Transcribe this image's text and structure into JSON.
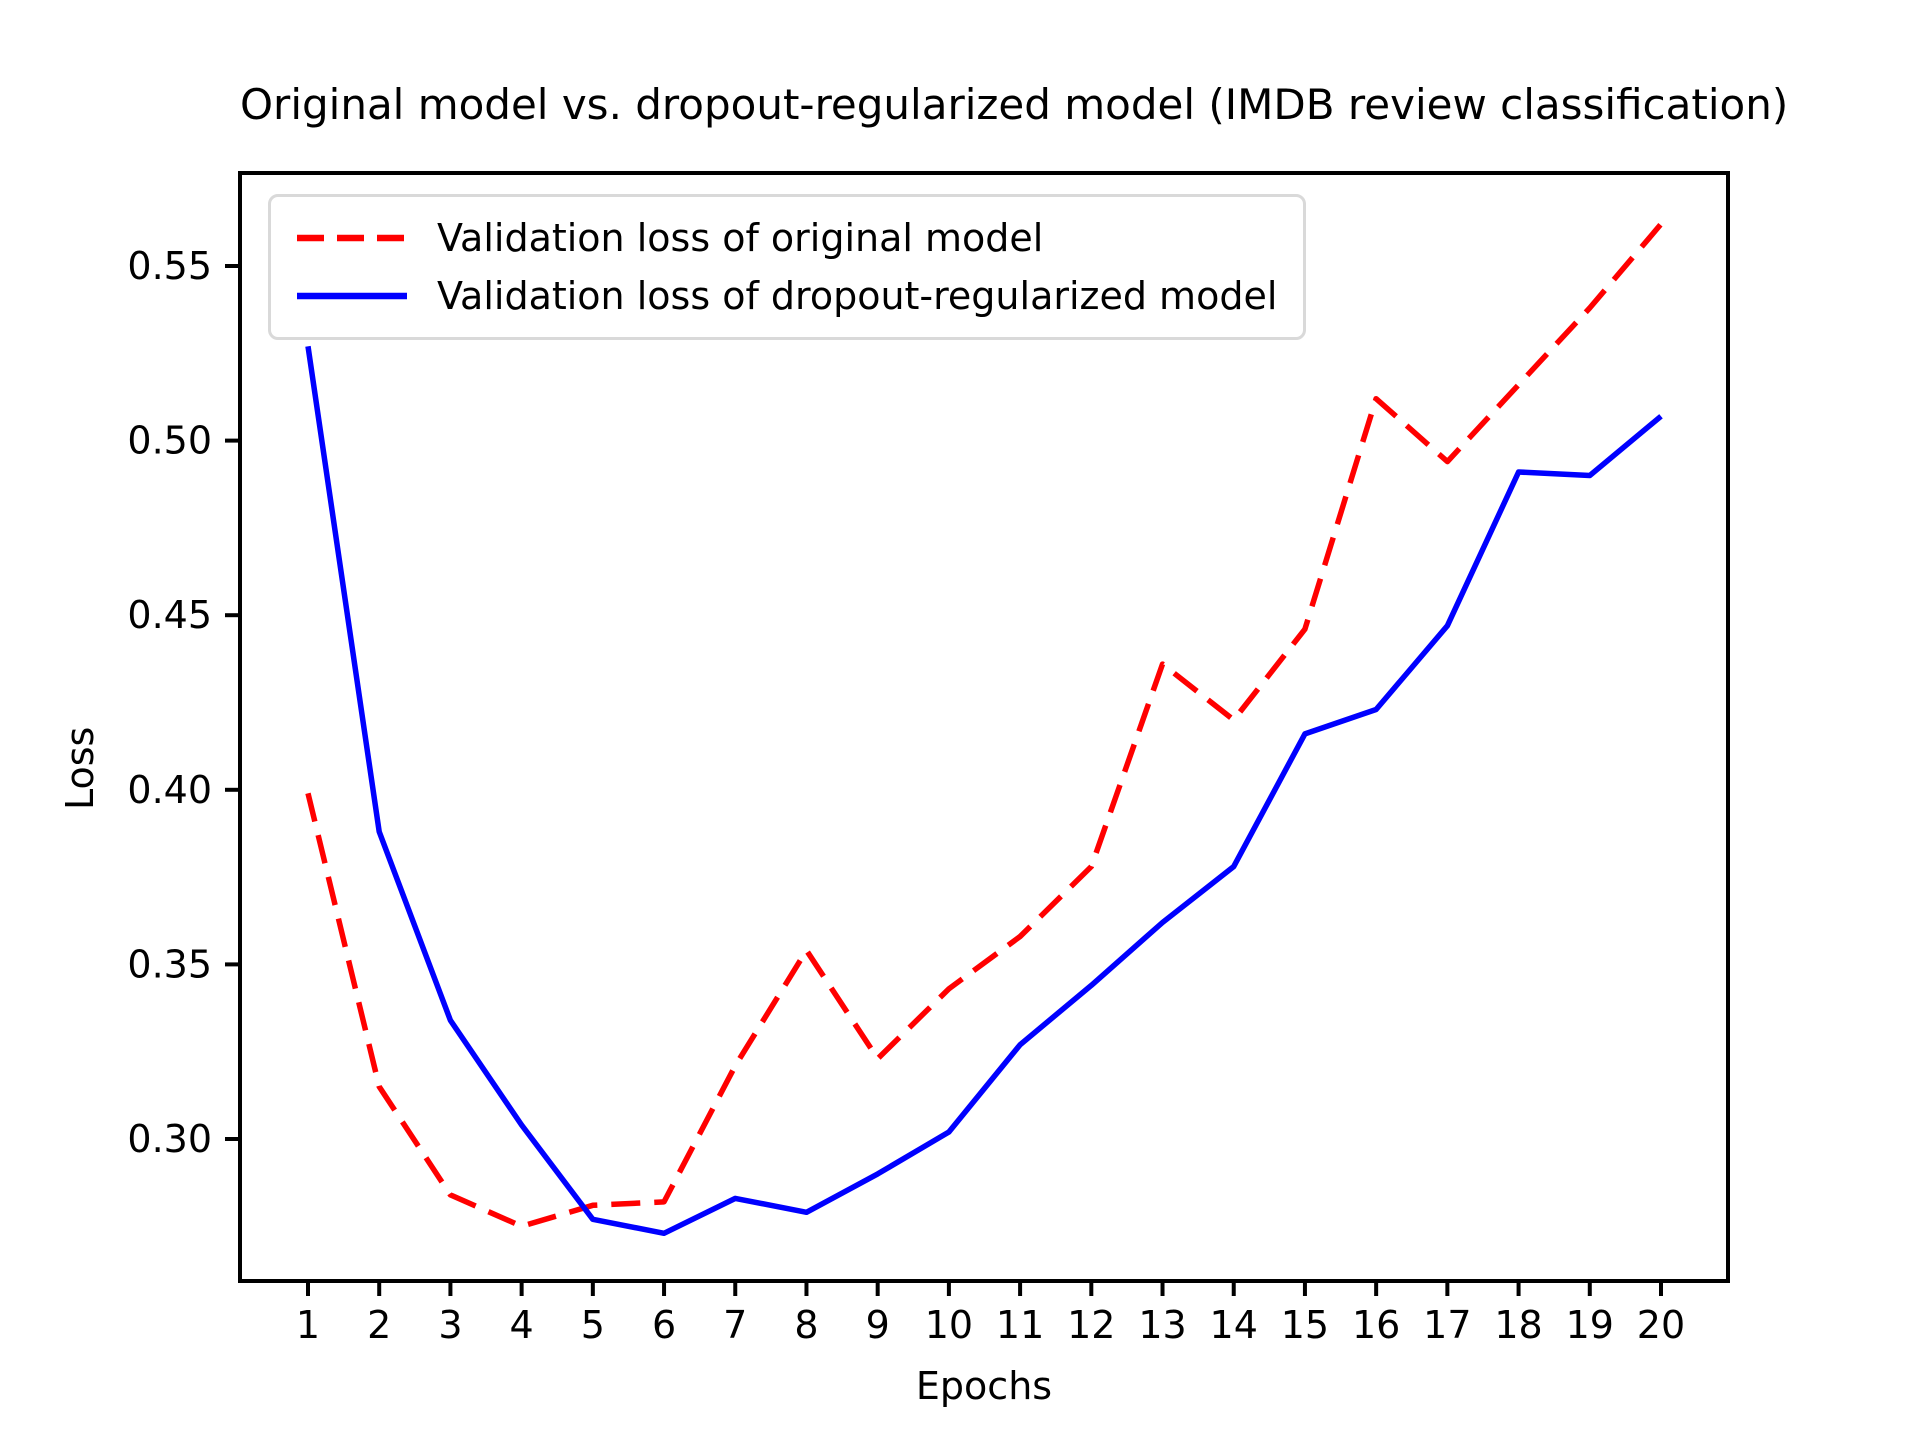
{
  "title": "Original model vs. dropout-regularized model (IMDB review classification)",
  "axes": {
    "xlabel": "Epochs",
    "ylabel": "Loss"
  },
  "legend": {
    "position": "upper left",
    "entries": [
      {
        "label": "Validation loss of original model",
        "color": "#ff0000",
        "line_style": "dashed"
      },
      {
        "label": "Validation loss of dropout-regularized model",
        "color": "#0000ff",
        "line_style": "solid"
      }
    ]
  },
  "chart_data": {
    "type": "line",
    "title": "Original model vs. dropout-regularized model (IMDB review classification)",
    "xlabel": "Epochs",
    "ylabel": "Loss",
    "x": [
      1,
      2,
      3,
      4,
      5,
      6,
      7,
      8,
      9,
      10,
      11,
      12,
      13,
      14,
      15,
      16,
      17,
      18,
      19,
      20
    ],
    "x_tick_labels": [
      "1",
      "2",
      "3",
      "4",
      "5",
      "6",
      "7",
      "8",
      "9",
      "10",
      "11",
      "12",
      "13",
      "14",
      "15",
      "16",
      "17",
      "18",
      "19",
      "20"
    ],
    "y_tick_labels": [
      "0.30",
      "0.35",
      "0.40",
      "0.45",
      "0.50",
      "0.55"
    ],
    "xlim": [
      0.05,
      20.95
    ],
    "ylim": [
      0.259,
      0.577
    ],
    "grid": false,
    "legend_position": "upper left",
    "series": [
      {
        "name": "Validation loss of original model",
        "color": "#ff0000",
        "line_style": "dashed",
        "values": [
          0.399,
          0.315,
          0.284,
          0.275,
          0.281,
          0.282,
          0.321,
          0.354,
          0.323,
          0.343,
          0.358,
          0.378,
          0.436,
          0.42,
          0.446,
          0.512,
          0.494,
          0.516,
          0.538,
          0.562
        ]
      },
      {
        "name": "Validation loss of dropout-regularized model",
        "color": "#0000ff",
        "line_style": "solid",
        "values": [
          0.527,
          0.388,
          0.334,
          0.304,
          0.277,
          0.273,
          0.283,
          0.279,
          0.29,
          0.302,
          0.327,
          0.344,
          0.362,
          0.378,
          0.416,
          0.423,
          0.447,
          0.491,
          0.49,
          0.507
        ]
      }
    ]
  }
}
